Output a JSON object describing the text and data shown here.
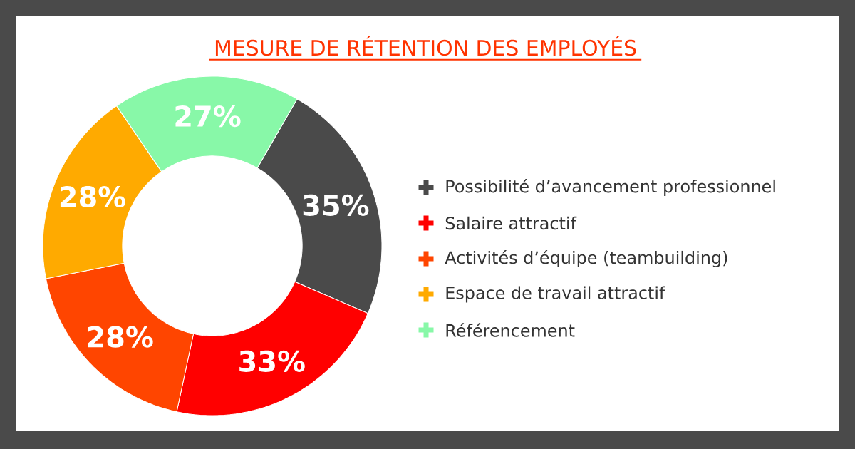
{
  "chart_data": {
    "type": "donut",
    "title": "MESURE DE RÉTENTION DES EMPLOYÉS",
    "categories": [
      "Possibilité d’avancement professionnel",
      "Salaire attractif",
      "Activités d’équipe (teambuilding)",
      "Espace de travail attractif",
      "Référencement"
    ],
    "values": [
      35,
      33,
      28,
      28,
      27
    ],
    "value_labels": [
      "35%",
      "33%",
      "28%",
      "28%",
      "27%"
    ],
    "colors": [
      "#4a4a4a",
      "#ff0000",
      "#ff4500",
      "#ffaa00",
      "#88f8a8"
    ],
    "legend": "right"
  }
}
